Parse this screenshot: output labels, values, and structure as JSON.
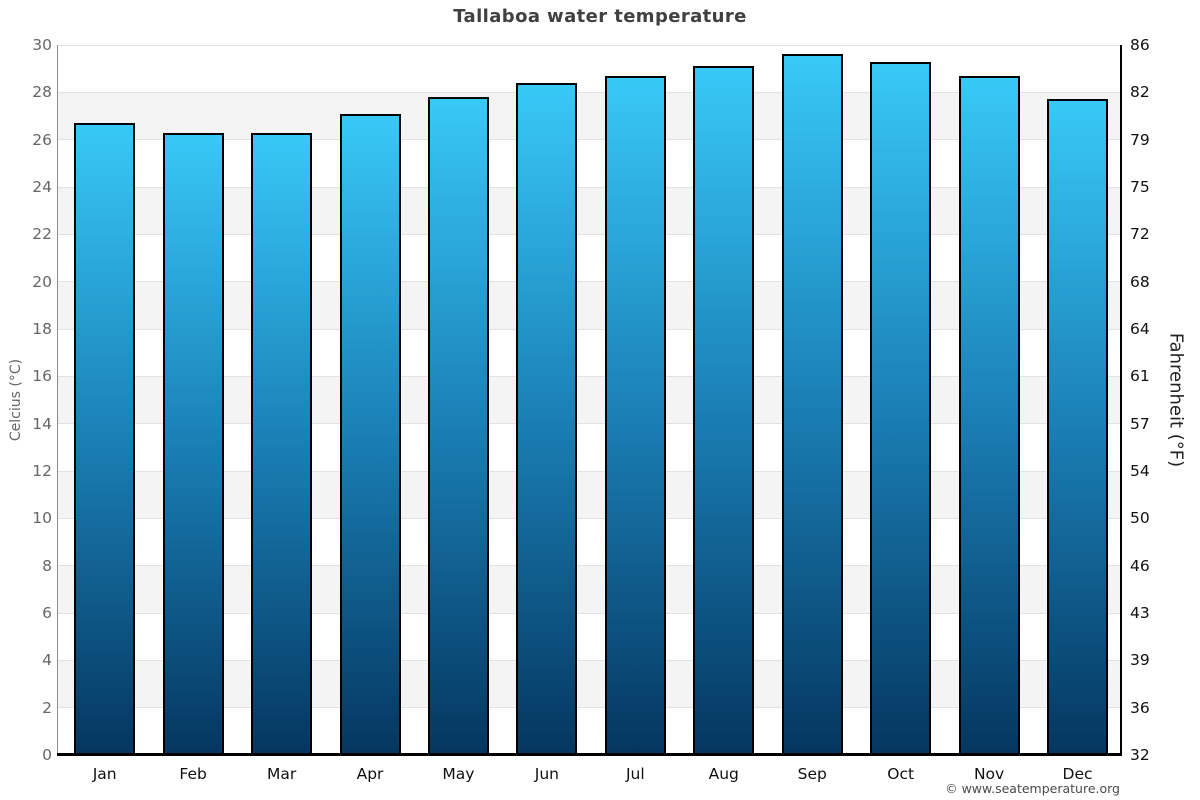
{
  "chart_data": {
    "type": "bar",
    "title": "Tallaboa water temperature",
    "categories": [
      "Jan",
      "Feb",
      "Mar",
      "Apr",
      "May",
      "Jun",
      "Jul",
      "Aug",
      "Sep",
      "Oct",
      "Nov",
      "Dec"
    ],
    "values": [
      26.7,
      26.3,
      26.3,
      27.1,
      27.8,
      28.4,
      28.7,
      29.1,
      29.6,
      29.3,
      28.7,
      27.7
    ],
    "xlabel": "",
    "ylabel_left": "Celcius (°C)",
    "ylabel_right": "Fahrenheit (°F)",
    "ylim": [
      0,
      30
    ],
    "ytick_step_celsius": 2,
    "celsius_tick_labels": [
      "30",
      "28",
      "26",
      "24",
      "22",
      "20",
      "18",
      "16",
      "14",
      "12",
      "10",
      "8",
      "6",
      "4",
      "2",
      "0"
    ],
    "fahrenheit_tick_labels": [
      "86",
      "82",
      "79",
      "75",
      "72",
      "68",
      "64",
      "61",
      "57",
      "54",
      "50",
      "46",
      "43",
      "39",
      "36",
      "32"
    ],
    "legend": null,
    "grid": "alternating horizontal bands every 2°C, white and light gray",
    "colors": {
      "bar_gradient_top": "#38c9f7",
      "bar_gradient_mid": "#1b82b8",
      "bar_gradient_bottom": "#04365f",
      "bar_border": "#000000",
      "band_gray": "#f4f4f4",
      "band_white": "#ffffff",
      "gridline": "#e2e2e2",
      "axis_left_line": "#8c8c8c",
      "axis_right_line": "#000000",
      "axis_bottom_line": "#000000",
      "celsius_tick_text": "#666666",
      "fahrenheit_tick_text": "#111111",
      "title_text": "#404040",
      "month_text": "#111111"
    }
  },
  "watermark": "© www.seatemperature.org"
}
